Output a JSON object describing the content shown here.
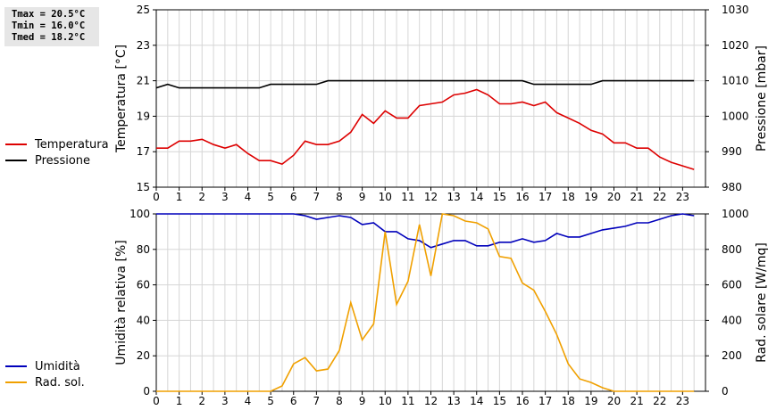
{
  "stats": {
    "tmax": "Tmax = 20.5°C",
    "tmin": "Tmin = 16.0°C",
    "tmed": "Tmed = 18.2°C"
  },
  "legend_top": [
    {
      "label": "Temperatura",
      "color": "#dd0000"
    },
    {
      "label": "Pressione",
      "color": "#000000"
    }
  ],
  "legend_bottom": [
    {
      "label": "Umidità",
      "color": "#0000bb"
    },
    {
      "label": "Rad. sol.",
      "color": "#f0a000"
    }
  ],
  "chart_data": [
    {
      "type": "line",
      "ylabel": "Temperatura [°C]",
      "y2label": "Pressione [mbar]",
      "xlim": [
        0,
        24
      ],
      "x_ticks": [
        "0",
        "1",
        "2",
        "3",
        "4",
        "5",
        "6",
        "7",
        "8",
        "9",
        "10",
        "11",
        "12",
        "13",
        "14",
        "15",
        "16",
        "17",
        "18",
        "19",
        "20",
        "21",
        "22",
        "23"
      ],
      "ylim": [
        15,
        25
      ],
      "y_ticks": [
        15,
        17,
        19,
        21,
        23,
        25
      ],
      "y2lim": [
        980,
        1030
      ],
      "y2_ticks": [
        980,
        990,
        1000,
        1010,
        1020,
        1030
      ],
      "grid": true,
      "series": [
        {
          "name": "Temperatura",
          "axis": "left",
          "color": "#dd0000",
          "x": [
            0,
            0.5,
            1,
            1.5,
            2,
            2.5,
            3,
            3.5,
            4,
            4.5,
            5,
            5.5,
            6,
            6.5,
            7,
            7.5,
            8,
            8.5,
            9,
            9.5,
            10,
            10.5,
            11,
            11.5,
            12,
            12.5,
            13,
            13.5,
            14,
            14.5,
            15,
            15.5,
            16,
            16.5,
            17,
            17.5,
            18,
            18.5,
            19,
            19.5,
            20,
            20.5,
            21,
            21.5,
            22,
            22.5,
            23,
            23.5
          ],
          "values": [
            17.2,
            17.2,
            17.6,
            17.6,
            17.7,
            17.4,
            17.2,
            17.4,
            16.9,
            16.5,
            16.5,
            16.3,
            16.8,
            17.6,
            17.4,
            17.4,
            17.6,
            18.1,
            19.1,
            18.6,
            19.3,
            18.9,
            18.9,
            19.6,
            19.7,
            19.8,
            20.2,
            20.3,
            20.5,
            20.2,
            19.7,
            19.7,
            19.8,
            19.6,
            19.8,
            19.2,
            18.9,
            18.6,
            18.2,
            18.0,
            17.5,
            17.5,
            17.2,
            17.2,
            16.7,
            16.4,
            16.2,
            16.0
          ]
        },
        {
          "name": "Pressione",
          "axis": "right",
          "color": "#000000",
          "x": [
            0,
            0.5,
            1,
            1.5,
            2,
            2.5,
            3,
            3.5,
            4,
            4.5,
            5,
            5.5,
            6,
            6.5,
            7,
            7.5,
            8,
            8.5,
            9,
            9.5,
            10,
            10.5,
            11,
            11.5,
            12,
            12.5,
            13,
            13.5,
            14,
            14.5,
            15,
            15.5,
            16,
            16.5,
            17,
            17.5,
            18,
            18.5,
            19,
            19.5,
            20,
            20.5,
            21,
            21.5,
            22,
            22.5,
            23,
            23.5
          ],
          "values": [
            1008,
            1009,
            1008,
            1008,
            1008,
            1008,
            1008,
            1008,
            1008,
            1008,
            1009,
            1009,
            1009,
            1009,
            1009,
            1010,
            1010,
            1010,
            1010,
            1010,
            1010,
            1010,
            1010,
            1010,
            1010,
            1010,
            1010,
            1010,
            1010,
            1010,
            1010,
            1010,
            1010,
            1009,
            1009,
            1009,
            1009,
            1009,
            1009,
            1010,
            1010,
            1010,
            1010,
            1010,
            1010,
            1010,
            1010,
            1010
          ]
        }
      ]
    },
    {
      "type": "line",
      "ylabel": "Umidità relativa [%]",
      "y2label": "Rad. solare [W/mq]",
      "xlim": [
        0,
        24
      ],
      "x_ticks": [
        "0",
        "1",
        "2",
        "3",
        "4",
        "5",
        "6",
        "7",
        "8",
        "9",
        "10",
        "11",
        "12",
        "13",
        "14",
        "15",
        "16",
        "17",
        "18",
        "19",
        "20",
        "21",
        "22",
        "23"
      ],
      "ylim": [
        0,
        100
      ],
      "y_ticks": [
        0,
        20,
        40,
        60,
        80,
        100
      ],
      "y2lim": [
        0,
        1000
      ],
      "y2_ticks": [
        0,
        200,
        400,
        600,
        800,
        1000
      ],
      "grid": true,
      "series": [
        {
          "name": "Umidità",
          "axis": "left",
          "color": "#0000bb",
          "x": [
            0,
            0.5,
            1,
            1.5,
            2,
            2.5,
            3,
            3.5,
            4,
            4.5,
            5,
            5.5,
            6,
            6.5,
            7,
            7.5,
            8,
            8.5,
            9,
            9.5,
            10,
            10.5,
            11,
            11.5,
            12,
            12.5,
            13,
            13.5,
            14,
            14.5,
            15,
            15.5,
            16,
            16.5,
            17,
            17.5,
            18,
            18.5,
            19,
            19.5,
            20,
            20.5,
            21,
            21.5,
            22,
            22.5,
            23,
            23.5
          ],
          "values": [
            100,
            100,
            100,
            100,
            100,
            100,
            100,
            100,
            100,
            100,
            100,
            100,
            100,
            99,
            97,
            98,
            99,
            98,
            94,
            95,
            90,
            90,
            86,
            85,
            81,
            83,
            85,
            85,
            82,
            82,
            84,
            84,
            86,
            84,
            85,
            89,
            87,
            87,
            89,
            91,
            92,
            93,
            95,
            95,
            97,
            99,
            100,
            99
          ]
        },
        {
          "name": "Rad. sol.",
          "axis": "right",
          "color": "#f0a000",
          "x": [
            0,
            0.5,
            1,
            1.5,
            2,
            2.5,
            3,
            3.5,
            4,
            4.5,
            5,
            5.5,
            6,
            6.5,
            7,
            7.5,
            8,
            8.5,
            9,
            9.5,
            10,
            10.5,
            11,
            11.5,
            12,
            12.5,
            13,
            13.5,
            14,
            14.5,
            15,
            15.5,
            16,
            16.5,
            17,
            17.5,
            18,
            18.5,
            19,
            19.5,
            20,
            20.5,
            21,
            21.5,
            22,
            22.5,
            23,
            23.5
          ],
          "values": [
            0,
            0,
            0,
            0,
            0,
            0,
            0,
            0,
            0,
            0,
            0,
            30,
            155,
            190,
            115,
            125,
            230,
            500,
            290,
            380,
            900,
            490,
            620,
            940,
            650,
            1000,
            990,
            960,
            950,
            915,
            760,
            750,
            610,
            570,
            450,
            320,
            155,
            70,
            50,
            20,
            0,
            0,
            0,
            0,
            0,
            0,
            0,
            0
          ]
        }
      ]
    }
  ]
}
